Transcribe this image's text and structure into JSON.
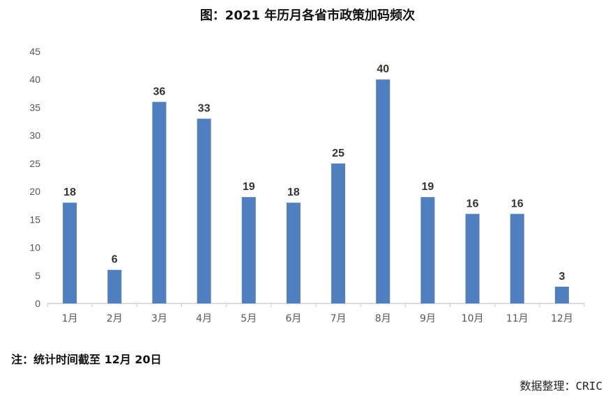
{
  "title": "图：2021 年历月各省市政策加码频次",
  "note": "注：统计时间截至 12月 20日",
  "source_label": "数据整理：",
  "source_value": "CRIC",
  "colors": {
    "bar": "#4F7FBF",
    "axis": "#c8c8c8",
    "text": "#555555"
  },
  "chart_data": {
    "type": "bar",
    "categories": [
      "1月",
      "2月",
      "3月",
      "4月",
      "5月",
      "6月",
      "7月",
      "8月",
      "9月",
      "10月",
      "11月",
      "12月"
    ],
    "values": [
      18,
      6,
      36,
      33,
      19,
      18,
      25,
      40,
      19,
      16,
      16,
      3
    ],
    "ylim": [
      0,
      45
    ],
    "yticks": [
      0,
      5,
      10,
      15,
      20,
      25,
      30,
      35,
      40,
      45
    ],
    "grid": false,
    "data_labels": true
  }
}
